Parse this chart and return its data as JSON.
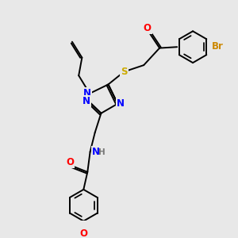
{
  "background_color": "#e8e8e8",
  "atom_colors": {
    "C": "#000000",
    "N": "#0000ff",
    "O": "#ff0000",
    "S": "#ccaa00",
    "Br": "#cc8800",
    "H": "#777777"
  },
  "bond_color": "#000000",
  "figsize": [
    3.0,
    3.0
  ],
  "dpi": 100
}
